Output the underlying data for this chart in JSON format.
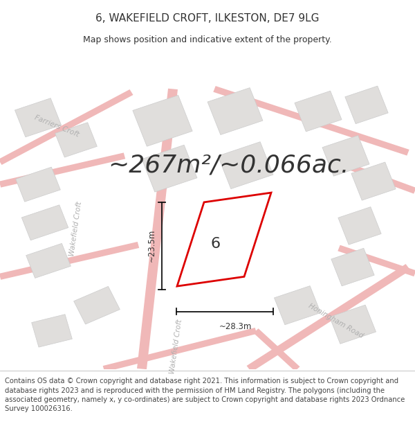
{
  "title": "6, WAKEFIELD CROFT, ILKESTON, DE7 9LG",
  "subtitle": "Map shows position and indicative extent of the property.",
  "area_text": "~267m²/~0.066ac.",
  "label_6": "6",
  "dim_vertical": "~23.5m",
  "dim_horizontal": "~28.3m",
  "footer": "Contains OS data © Crown copyright and database right 2021. This information is subject to Crown copyright and database rights 2023 and is reproduced with the permission of HM Land Registry. The polygons (including the associated geometry, namely x, y co-ordinates) are subject to Crown copyright and database rights 2023 Ordnance Survey 100026316.",
  "map_bg": "#f9f8f8",
  "road_color": "#f0b8b8",
  "block_color": "#e0dedc",
  "block_edge": "#cccccc",
  "highlight_fill": "#f0eeee",
  "red_color": "#dd0000",
  "dim_line_color": "#111111",
  "text_dark": "#333333",
  "text_road": "#b0b0b0",
  "footer_bg": "#ffffff",
  "title_fontsize": 11,
  "subtitle_fontsize": 9,
  "area_fontsize": 26,
  "label_fontsize": 16,
  "road_label_fontsize": 7.5,
  "footer_fontsize": 7.2,
  "road_lw": 1.5
}
